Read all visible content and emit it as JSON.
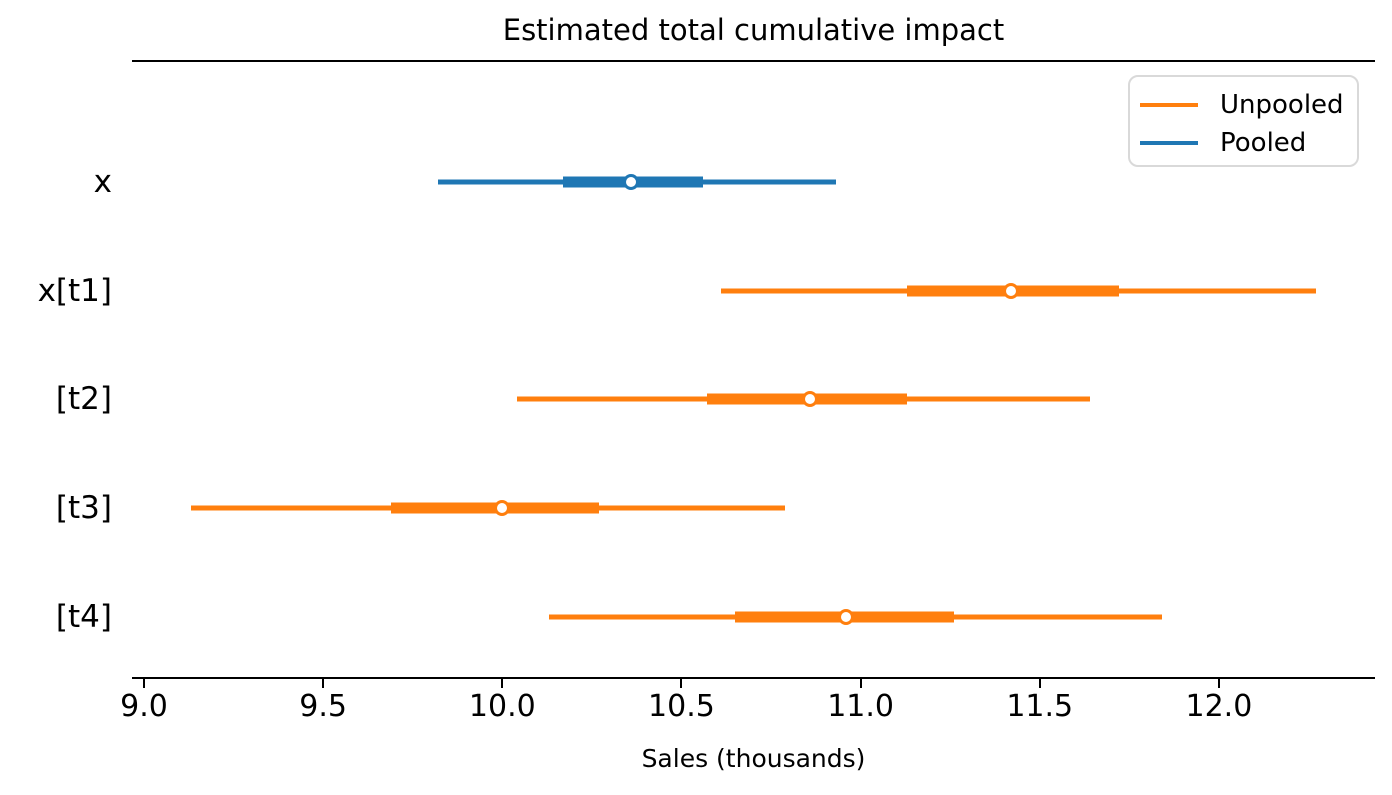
{
  "title": "Estimated total cumulative impact",
  "xlabel": "Sales (thousands)",
  "legend": {
    "items": [
      {
        "label": "Unpooled",
        "color": "#ff7f0e"
      },
      {
        "label": "Pooled",
        "color": "#1f77b4"
      }
    ]
  },
  "colors": {
    "unpooled": "#ff7f0e",
    "pooled": "#1f77b4",
    "marker_fill": "#ffffff",
    "spine": "#000000"
  },
  "chart_data": {
    "type": "forest",
    "title": "Estimated total cumulative impact",
    "xlabel": "Sales (thousands)",
    "xlim": [
      8.97,
      12.43
    ],
    "xticks": [
      9.0,
      9.5,
      10.0,
      10.5,
      11.0,
      11.5,
      12.0
    ],
    "xtick_labels": [
      "9.0",
      "9.5",
      "10.0",
      "10.5",
      "11.0",
      "11.5",
      "12.0"
    ],
    "grid": false,
    "legend_position": "upper right",
    "rows": [
      {
        "label": "x",
        "group": "Pooled",
        "color": "#1f77b4",
        "mean": 10.36,
        "hdi_50": [
          10.17,
          10.56
        ],
        "hdi_94": [
          9.82,
          10.93
        ]
      },
      {
        "label": "x[t1]",
        "group": "Unpooled",
        "color": "#ff7f0e",
        "mean": 11.42,
        "hdi_50": [
          11.13,
          11.72
        ],
        "hdi_94": [
          10.61,
          12.27
        ]
      },
      {
        "label": "[t2]",
        "group": "Unpooled",
        "color": "#ff7f0e",
        "mean": 10.86,
        "hdi_50": [
          10.57,
          11.13
        ],
        "hdi_94": [
          10.04,
          11.64
        ]
      },
      {
        "label": "[t3]",
        "group": "Unpooled",
        "color": "#ff7f0e",
        "mean": 10.0,
        "hdi_50": [
          9.69,
          10.27
        ],
        "hdi_94": [
          9.13,
          10.79
        ]
      },
      {
        "label": "[t4]",
        "group": "Unpooled",
        "color": "#ff7f0e",
        "mean": 10.96,
        "hdi_50": [
          10.65,
          11.26
        ],
        "hdi_94": [
          10.13,
          11.84
        ]
      }
    ]
  }
}
